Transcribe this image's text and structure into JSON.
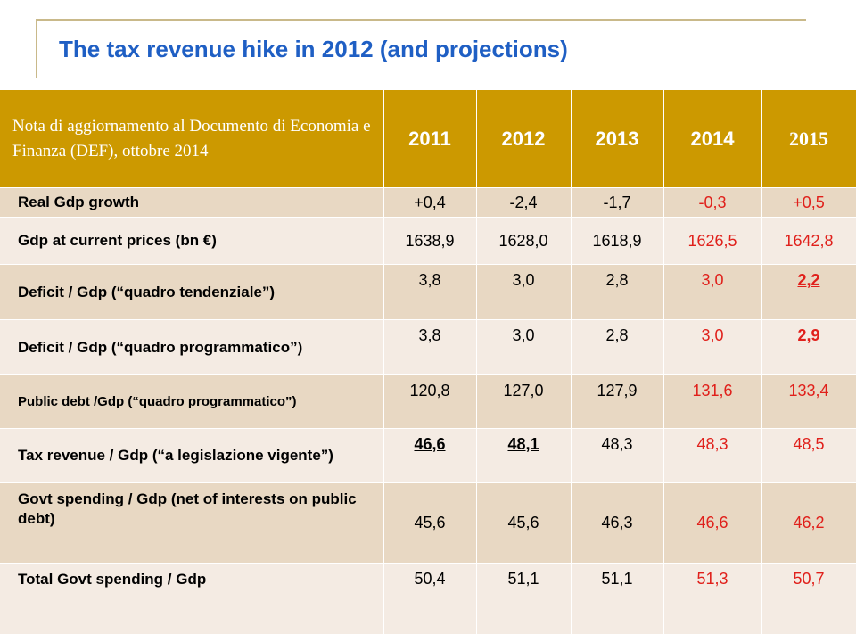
{
  "title": "The tax revenue hike in 2012 (and projections)",
  "table": {
    "header_note": "Nota di aggiornamento al Documento di Economia e Finanza (DEF), ottobre 2014",
    "years": [
      "2011",
      "2012",
      "2013",
      "2014",
      "2015"
    ],
    "rows": [
      {
        "label": "Real Gdp growth",
        "values": [
          "+0,4",
          "-2,4",
          "-1,7",
          "-0,3",
          "+0,5"
        ]
      },
      {
        "label": "Gdp at current prices (bn €)",
        "values": [
          "1638,9",
          "1628,0",
          "1618,9",
          "1626,5",
          "1642,8"
        ]
      },
      {
        "label": "Deficit / Gdp (“quadro tendenziale”)",
        "values": [
          "3,8",
          "3,0",
          "2,8",
          "3,0",
          "2,2"
        ]
      },
      {
        "label": "Deficit / Gdp (“quadro programmatico”)",
        "values": [
          "3,8",
          "3,0",
          "2,8",
          "3,0",
          "2,9"
        ]
      },
      {
        "label": "Public debt /Gdp (“quadro programmatico”)",
        "values": [
          "120,8",
          "127,0",
          "127,9",
          "131,6",
          "133,4"
        ]
      },
      {
        "label": "Tax revenue / Gdp (“a legislazione vigente”)",
        "values": [
          "46,6",
          "48,1",
          "48,3",
          "48,3",
          "48,5"
        ]
      },
      {
        "label": "Govt spending / Gdp (net of interests on public debt)",
        "values": [
          "45,6",
          "45,6",
          "46,3",
          "46,6",
          "46,2"
        ]
      },
      {
        "label": "Total Govt spending / Gdp",
        "values": [
          "50,4",
          "51,1",
          "51,1",
          "51,3",
          "50,7"
        ]
      }
    ]
  },
  "colors": {
    "title": "#1f5fc4",
    "header_bg": "#cc9900",
    "row_odd": "#e8d8c3",
    "row_even": "#f4ebe3",
    "projection_text": "#e0201b"
  }
}
